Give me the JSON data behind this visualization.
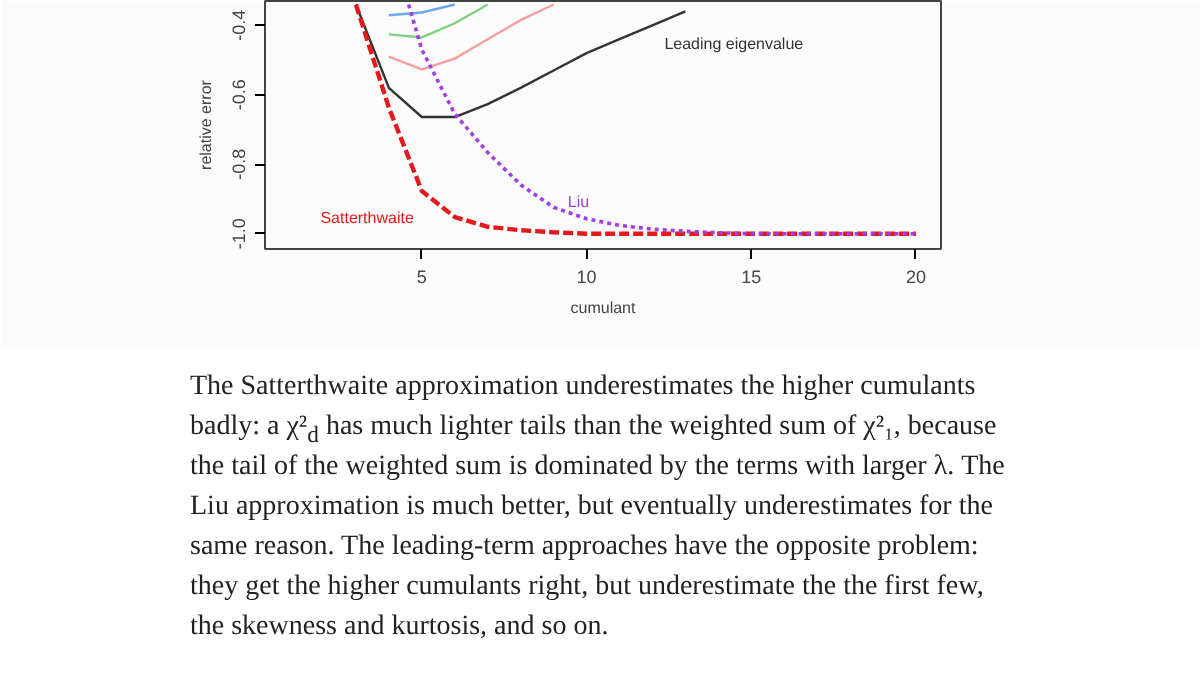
{
  "chart_data": {
    "type": "line",
    "xlabel": "cumulant",
    "ylabel": "relative error",
    "xlim": [
      0.24,
      20.76
    ],
    "ylim": [
      -1.044,
      -0.33
    ],
    "xticks": [
      5,
      10,
      15,
      20
    ],
    "yticks": [
      {
        "value": -1.0,
        "label": "-1.0"
      },
      {
        "value": -0.8,
        "label": "-0.8"
      },
      {
        "value": -0.6,
        "label": "-0.6"
      },
      {
        "value": -0.4,
        "label": "-0.4"
      }
    ],
    "grid": false,
    "marker": "none",
    "series": [
      {
        "color": "#6fa8e8",
        "x": [
          4,
          5,
          6
        ],
        "values": [
          -0.371,
          -0.363,
          -0.34
        ]
      },
      {
        "color": "#7fd07f",
        "x": [
          4,
          5,
          6,
          7
        ],
        "values": [
          -0.426,
          -0.435,
          -0.394,
          -0.34
        ]
      },
      {
        "color": "#f4a0a0",
        "x": [
          4,
          5,
          6,
          7,
          8,
          9
        ],
        "values": [
          -0.49,
          -0.527,
          -0.496,
          -0.44,
          -0.385,
          -0.34
        ]
      },
      {
        "name": "Leading eigenvalue",
        "color": "#333333",
        "x": [
          3,
          4,
          5,
          6,
          7,
          8,
          9,
          10,
          11,
          12,
          13
        ],
        "values": [
          -0.34,
          -0.58,
          -0.664,
          -0.664,
          -0.627,
          -0.58,
          -0.53,
          -0.48,
          -0.44,
          -0.4,
          -0.36
        ]
      },
      {
        "name": "Liu",
        "color": "#a040e0",
        "line_style": "dotted",
        "x": [
          4.6,
          5,
          6,
          7,
          8,
          9,
          10,
          11,
          12,
          13,
          14,
          15,
          16,
          17,
          18,
          19,
          20
        ],
        "values": [
          -0.34,
          -0.47,
          -0.655,
          -0.766,
          -0.859,
          -0.924,
          -0.957,
          -0.976,
          -0.987,
          -0.993,
          -0.997,
          -1.0,
          -1.0,
          -1.0,
          -1.0,
          -1.0,
          -1.0
        ]
      },
      {
        "name": "Satterthwaite",
        "color": "#e31a1c",
        "line_style": "dashed",
        "x": [
          3,
          4,
          5,
          6,
          7,
          8,
          9,
          10,
          11,
          12,
          13,
          14,
          15,
          16,
          17,
          18,
          19,
          20
        ],
        "values": [
          -0.34,
          -0.637,
          -0.877,
          -0.952,
          -0.98,
          -0.99,
          -0.996,
          -1.0,
          -1.0,
          -1.0,
          -1.0,
          -1.0,
          -1.0,
          -1.0,
          -1.0,
          -1.0,
          -1.0,
          -1.0
        ]
      }
    ],
    "annotations": [
      "The Satterthwaite approximation underestimates the higher cumulants badly: a χ²$_{d}$ has much lighter tails than the weighted sum of χ²₁, because the tail of the weighted sum is dominated by the terms with larger λ. The Liu approximation is much better, but eventually underestimates for the same reason. The leading-term approaches have the opposite problem: they get the higher cumulants right, but underestimate the the first few, the skewness and kurtosis, and so on."
    ]
  }
}
